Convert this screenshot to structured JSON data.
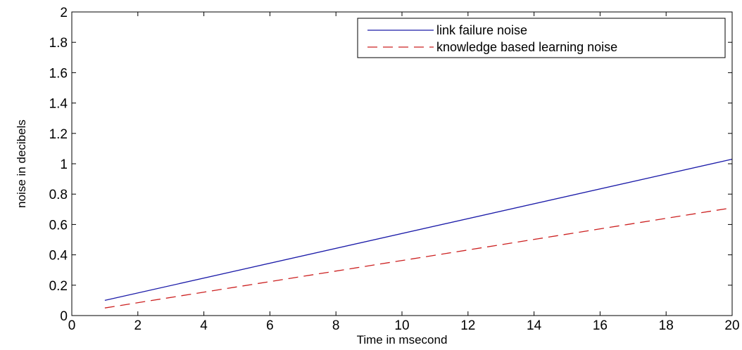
{
  "chart_data": {
    "type": "line",
    "title": "",
    "xlabel": "Time in msecond",
    "ylabel": "noise in decibels",
    "xlim": [
      0,
      20
    ],
    "ylim": [
      0,
      2
    ],
    "xticks": [
      0,
      2,
      4,
      6,
      8,
      10,
      12,
      14,
      16,
      18,
      20
    ],
    "yticks": [
      0,
      0.2,
      0.4,
      0.6,
      0.8,
      1,
      1.2,
      1.4,
      1.6,
      1.8,
      2
    ],
    "xtick_labels": [
      "0",
      "2",
      "4",
      "6",
      "8",
      "10",
      "12",
      "14",
      "16",
      "18",
      "20"
    ],
    "ytick_labels": [
      "0",
      "0.2",
      "0.4",
      "0.6",
      "0.8",
      "1",
      "1.2",
      "1.4",
      "1.6",
      "1.8",
      "2"
    ],
    "grid": false,
    "legend_position": "top-right",
    "series": [
      {
        "name": "link failure noise",
        "color": "#1a1aa8",
        "line_style": "solid",
        "x": [
          1,
          20
        ],
        "y": [
          0.1,
          1.03
        ]
      },
      {
        "name": "knowledge based learning noise",
        "color": "#cc2020",
        "line_style": "dashed",
        "x": [
          1,
          20
        ],
        "y": [
          0.05,
          0.71
        ]
      }
    ]
  }
}
